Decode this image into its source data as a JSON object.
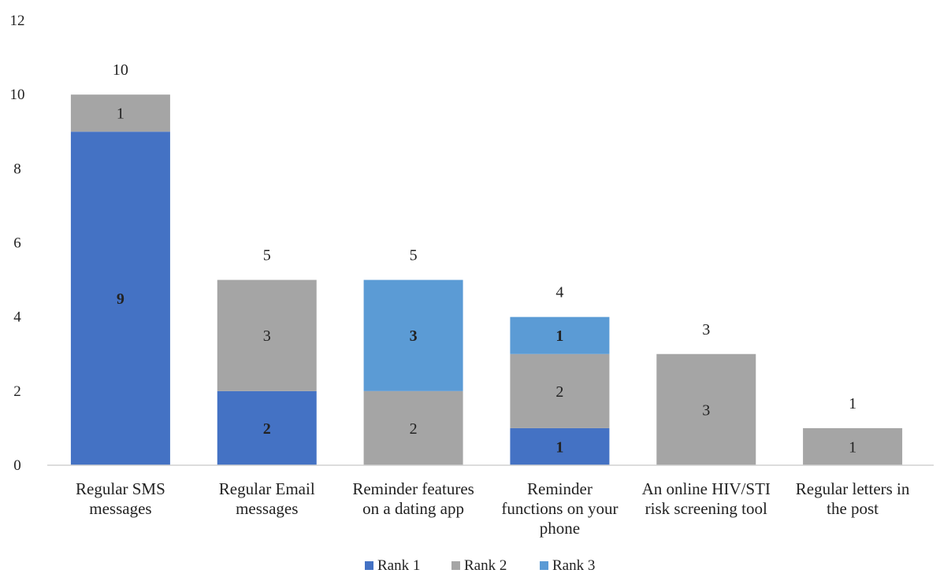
{
  "chart_data": {
    "type": "bar",
    "stacked": true,
    "categories": [
      [
        "Regular SMS",
        "messages"
      ],
      [
        "Regular Email",
        "messages"
      ],
      [
        "Reminder features",
        "on a dating app"
      ],
      [
        "Reminder",
        "functions on your",
        "phone"
      ],
      [
        "An online HIV/STI",
        "risk screening tool"
      ],
      [
        "Regular letters in",
        "the post"
      ]
    ],
    "series": [
      {
        "name": "Rank 1",
        "color": "#4472C4",
        "label_color": "#ffffff",
        "values": [
          9,
          2,
          0,
          1,
          0,
          0
        ]
      },
      {
        "name": "Rank 2",
        "color": "#A5A5A5",
        "label_color": "#333333",
        "values": [
          1,
          3,
          2,
          2,
          3,
          1
        ]
      },
      {
        "name": "Rank 3",
        "color": "#5B9BD5",
        "label_color": "#ffffff",
        "values": [
          0,
          0,
          3,
          1,
          0,
          0
        ]
      }
    ],
    "totals": [
      10,
      5,
      5,
      4,
      3,
      1
    ],
    "ylim": [
      0,
      12
    ],
    "yticks": [
      0,
      2,
      4,
      6,
      8,
      10,
      12
    ],
    "grid": false,
    "legend_position": "bottom",
    "title": "",
    "xlabel": "",
    "ylabel": ""
  }
}
